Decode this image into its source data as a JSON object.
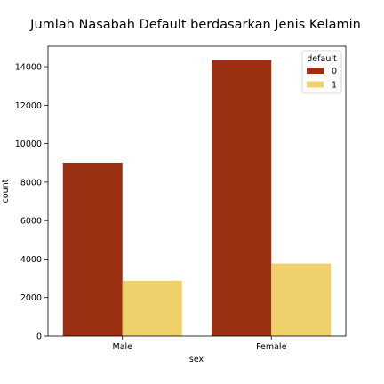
{
  "chart_data": {
    "type": "bar",
    "title": "Jumlah Nasabah Default berdasarkan Jenis Kelamin",
    "xlabel": "sex",
    "ylabel": "count",
    "categories": [
      "Male",
      "Female"
    ],
    "series": [
      {
        "name": "0",
        "values": [
          9015,
          14349
        ],
        "color": "#9b2f12"
      },
      {
        "name": "1",
        "values": [
          2873,
          3763
        ],
        "color": "#f0d06a"
      }
    ],
    "ylim": [
      0,
      15066
    ],
    "yticks": [
      0,
      2000,
      4000,
      6000,
      8000,
      10000,
      12000,
      14000
    ],
    "legend": {
      "title": "default",
      "placement": "top-right"
    },
    "grid": false
  }
}
